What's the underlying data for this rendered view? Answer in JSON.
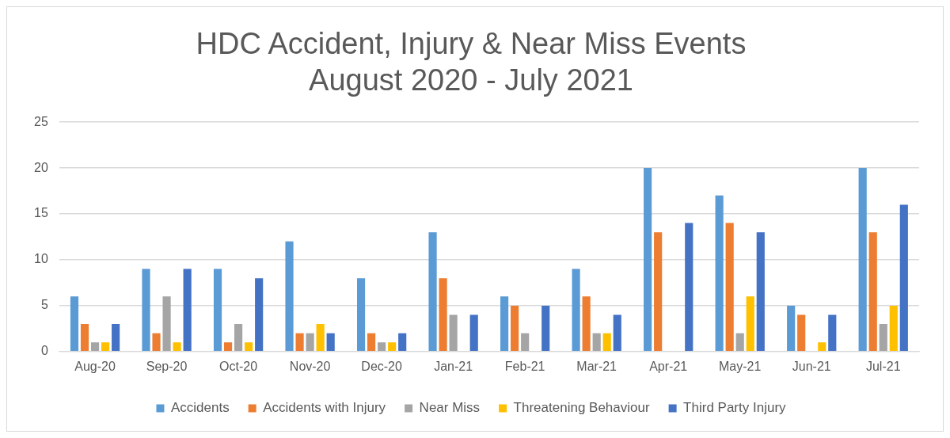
{
  "chart_data": {
    "type": "bar",
    "title": "HDC Accident, Injury & Near Miss Events\nAugust 2020 - July 2021",
    "categories": [
      "Aug-20",
      "Sep-20",
      "Oct-20",
      "Nov-20",
      "Dec-20",
      "Jan-21",
      "Feb-21",
      "Mar-21",
      "Apr-21",
      "May-21",
      "Jun-21",
      "Jul-21"
    ],
    "series": [
      {
        "name": "Accidents",
        "color": "#5b9bd5",
        "values": [
          6,
          9,
          9,
          12,
          8,
          13,
          6,
          9,
          20,
          17,
          5,
          20
        ]
      },
      {
        "name": "Accidents with Injury",
        "color": "#ed7d31",
        "values": [
          3,
          2,
          1,
          2,
          2,
          8,
          5,
          6,
          13,
          14,
          4,
          13
        ]
      },
      {
        "name": "Near Miss",
        "color": "#a5a5a5",
        "values": [
          1,
          6,
          3,
          2,
          1,
          4,
          2,
          2,
          0,
          2,
          0,
          3
        ]
      },
      {
        "name": "Threatening Behaviour",
        "color": "#ffc000",
        "values": [
          1,
          1,
          1,
          3,
          1,
          0,
          0,
          2,
          0,
          6,
          1,
          5
        ]
      },
      {
        "name": "Third Party Injury",
        "color": "#4472c4",
        "values": [
          3,
          9,
          8,
          2,
          2,
          4,
          5,
          4,
          14,
          13,
          4,
          16
        ]
      }
    ],
    "ylim": [
      0,
      25
    ],
    "yticks": [
      0,
      5,
      10,
      15,
      20,
      25
    ],
    "grid": "y",
    "legend": "bottom"
  }
}
